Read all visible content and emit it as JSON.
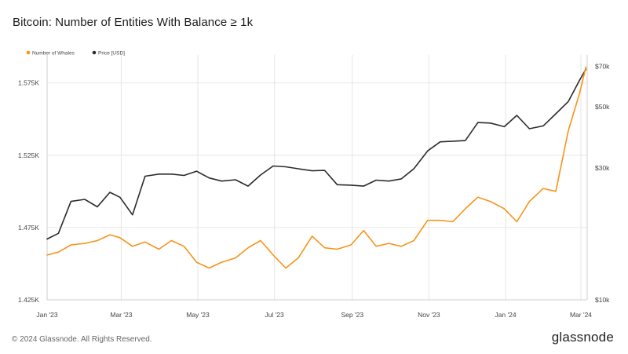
{
  "header": {
    "title": "Bitcoin: Number of Entities With Balance ≥ 1k"
  },
  "footer": {
    "copyright": "© 2024 Glassnode. All Rights Reserved.",
    "brand": "glassnode"
  },
  "colors": {
    "whales": "#f7931a",
    "price": "#2b2b2b",
    "grid": "#e6e6e6"
  },
  "chart_data": {
    "type": "line",
    "title": "Bitcoin: Number of Entities With Balance ≥ 1k",
    "legend_position": "top-left",
    "grid": true,
    "x_ticks": [
      "Jan '23",
      "Mar '23",
      "May '23",
      "Jul '23",
      "Sep '23",
      "Nov '23",
      "Jan '24",
      "Mar '24"
    ],
    "x_tick_dates": [
      "2023-01-01",
      "2023-03-01",
      "2023-05-01",
      "2023-07-01",
      "2023-09-01",
      "2023-11-01",
      "2024-01-01",
      "2024-03-01"
    ],
    "x_range": [
      "2023-01-01",
      "2024-03-06"
    ],
    "y_left": {
      "ticks": [
        "1.425K",
        "1.475K",
        "1.525K",
        "1.575K"
      ],
      "tick_values": [
        1425,
        1475,
        1525,
        1575
      ],
      "range": [
        1425,
        1590
      ]
    },
    "y_right": {
      "ticks": [
        "$10k",
        "$30k",
        "$50k",
        "$70k"
      ],
      "tick_values": [
        10000,
        30000,
        50000,
        70000
      ],
      "range": [
        10000,
        73000
      ],
      "scale": "log"
    },
    "series": [
      {
        "name": "Number of Whales",
        "axis": "left",
        "color": "#f7931a",
        "points": [
          [
            "2023-01-01",
            1456
          ],
          [
            "2023-01-10",
            1458
          ],
          [
            "2023-01-20",
            1463
          ],
          [
            "2023-01-31",
            1464
          ],
          [
            "2023-02-10",
            1466
          ],
          [
            "2023-02-20",
            1470
          ],
          [
            "2023-02-28",
            1468
          ],
          [
            "2023-03-10",
            1462
          ],
          [
            "2023-03-20",
            1465
          ],
          [
            "2023-03-31",
            1460
          ],
          [
            "2023-04-10",
            1466
          ],
          [
            "2023-04-20",
            1462
          ],
          [
            "2023-04-30",
            1451
          ],
          [
            "2023-05-10",
            1447
          ],
          [
            "2023-05-20",
            1451
          ],
          [
            "2023-05-31",
            1454
          ],
          [
            "2023-06-10",
            1461
          ],
          [
            "2023-06-20",
            1466
          ],
          [
            "2023-06-30",
            1456
          ],
          [
            "2023-07-10",
            1447
          ],
          [
            "2023-07-20",
            1454
          ],
          [
            "2023-07-31",
            1469
          ],
          [
            "2023-08-10",
            1461
          ],
          [
            "2023-08-20",
            1460
          ],
          [
            "2023-08-31",
            1463
          ],
          [
            "2023-09-10",
            1473
          ],
          [
            "2023-09-20",
            1462
          ],
          [
            "2023-09-30",
            1464
          ],
          [
            "2023-10-10",
            1462
          ],
          [
            "2023-10-20",
            1466
          ],
          [
            "2023-10-31",
            1480
          ],
          [
            "2023-11-10",
            1480
          ],
          [
            "2023-11-20",
            1479
          ],
          [
            "2023-11-30",
            1488
          ],
          [
            "2023-12-10",
            1496
          ],
          [
            "2023-12-20",
            1493
          ],
          [
            "2023-12-31",
            1488
          ],
          [
            "2024-01-10",
            1479
          ],
          [
            "2024-01-20",
            1493
          ],
          [
            "2024-01-31",
            1502
          ],
          [
            "2024-02-10",
            1500
          ],
          [
            "2024-02-20",
            1542
          ],
          [
            "2024-02-29",
            1568
          ],
          [
            "2024-03-05",
            1586
          ]
        ]
      },
      {
        "name": "Price [USD]",
        "axis": "right",
        "color": "#2b2b2b",
        "points": [
          [
            "2023-01-01",
            16600
          ],
          [
            "2023-01-10",
            17400
          ],
          [
            "2023-01-20",
            22700
          ],
          [
            "2023-01-31",
            23100
          ],
          [
            "2023-02-10",
            21700
          ],
          [
            "2023-02-20",
            24500
          ],
          [
            "2023-02-28",
            23500
          ],
          [
            "2023-03-10",
            20300
          ],
          [
            "2023-03-20",
            28000
          ],
          [
            "2023-03-31",
            28500
          ],
          [
            "2023-04-10",
            28500
          ],
          [
            "2023-04-20",
            28200
          ],
          [
            "2023-04-30",
            29200
          ],
          [
            "2023-05-10",
            27600
          ],
          [
            "2023-05-20",
            26900
          ],
          [
            "2023-05-31",
            27200
          ],
          [
            "2023-06-10",
            25800
          ],
          [
            "2023-06-20",
            28300
          ],
          [
            "2023-06-30",
            30500
          ],
          [
            "2023-07-10",
            30300
          ],
          [
            "2023-07-20",
            29800
          ],
          [
            "2023-07-31",
            29300
          ],
          [
            "2023-08-10",
            29400
          ],
          [
            "2023-08-20",
            26100
          ],
          [
            "2023-08-31",
            26000
          ],
          [
            "2023-09-10",
            25800
          ],
          [
            "2023-09-20",
            27100
          ],
          [
            "2023-09-30",
            26900
          ],
          [
            "2023-10-10",
            27400
          ],
          [
            "2023-10-20",
            29800
          ],
          [
            "2023-10-31",
            34600
          ],
          [
            "2023-11-10",
            37300
          ],
          [
            "2023-11-20",
            37500
          ],
          [
            "2023-11-30",
            37700
          ],
          [
            "2023-12-10",
            43800
          ],
          [
            "2023-12-20",
            43600
          ],
          [
            "2023-12-31",
            42300
          ],
          [
            "2024-01-10",
            46500
          ],
          [
            "2024-01-20",
            41600
          ],
          [
            "2024-01-31",
            42600
          ],
          [
            "2024-02-10",
            47100
          ],
          [
            "2024-02-20",
            52200
          ],
          [
            "2024-02-29",
            62400
          ],
          [
            "2024-03-05",
            68300
          ]
        ]
      }
    ]
  }
}
